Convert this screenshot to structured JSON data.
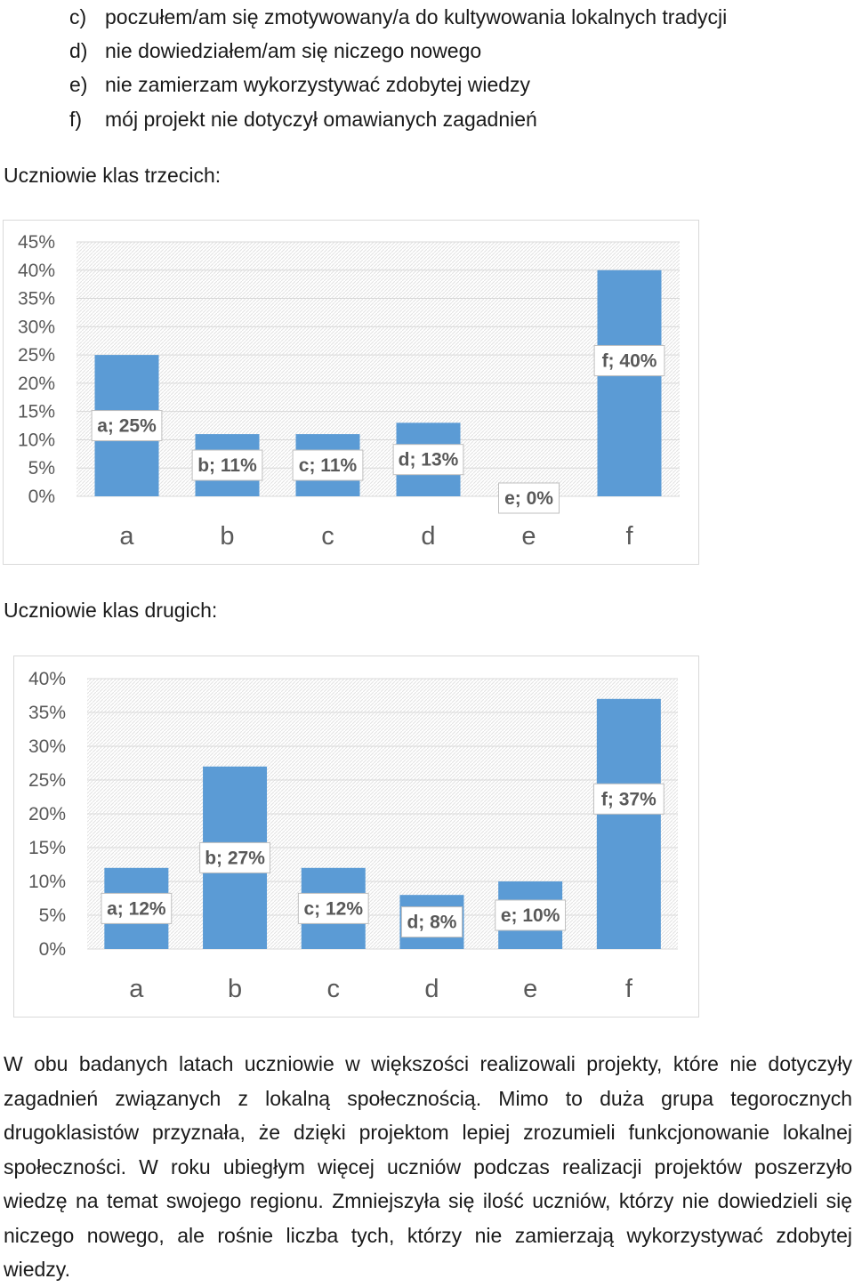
{
  "options": [
    {
      "letter": "c)",
      "text": "poczułem/am się zmotywowany/a do kultywowania lokalnych tradycji"
    },
    {
      "letter": "d)",
      "text": "nie dowiedziałem/am się niczego nowego"
    },
    {
      "letter": "e)",
      "text": "nie zamierzam wykorzystywać zdobytej wiedzy"
    },
    {
      "letter": "f)",
      "text": "mój projekt nie dotyczył omawianych zagadnień"
    }
  ],
  "headings": {
    "third": "Uczniowie klas trzecich:",
    "second": "Uczniowie klas drugich:"
  },
  "colors": {
    "bar": "#5b9bd5",
    "grid": "#d9d9d9",
    "label_border": "#bfbfbf",
    "text": "#595959"
  },
  "chart_data": [
    {
      "type": "bar",
      "categories": [
        "a",
        "b",
        "c",
        "d",
        "e",
        "f"
      ],
      "values": [
        25,
        11,
        11,
        13,
        0,
        40
      ],
      "data_labels": [
        "a; 25%",
        "b; 11%",
        "c; 11%",
        "d; 13%",
        "e; 0%",
        "f; 40%"
      ],
      "yticks": [
        "45%",
        "40%",
        "35%",
        "30%",
        "25%",
        "20%",
        "15%",
        "10%",
        "5%",
        "0%"
      ],
      "ylim": [
        0,
        45
      ],
      "grid": true,
      "title": "",
      "xlabel": "",
      "ylabel": ""
    },
    {
      "type": "bar",
      "categories": [
        "a",
        "b",
        "c",
        "d",
        "e",
        "f"
      ],
      "values": [
        12,
        27,
        12,
        8,
        10,
        37
      ],
      "data_labels": [
        "a; 12%",
        "b; 27%",
        "c; 12%",
        "d; 8%",
        "e; 10%",
        "f; 37%"
      ],
      "yticks": [
        "40%",
        "35%",
        "30%",
        "25%",
        "20%",
        "15%",
        "10%",
        "5%",
        "0%"
      ],
      "ylim": [
        0,
        40
      ],
      "grid": true,
      "title": "",
      "xlabel": "",
      "ylabel": ""
    }
  ],
  "paragraph": "W obu badanych latach uczniowie w większości realizowali projekty, które nie dotyczyły zagadnień związanych z lokalną społecznością. Mimo to duża grupa tegorocznych drugoklasistów przyznała, że dzięki projektom lepiej zrozumieli funkcjonowanie lokalnej społeczności. W roku ubiegłym więcej uczniów podczas realizacji projektów poszerzyło wiedzę na temat swojego regionu. Zmniejszyła się ilość uczniów, którzy nie dowiedzieli się niczego nowego, ale rośnie liczba tych, którzy nie zamierzają wykorzystywać zdobytej wiedzy."
}
